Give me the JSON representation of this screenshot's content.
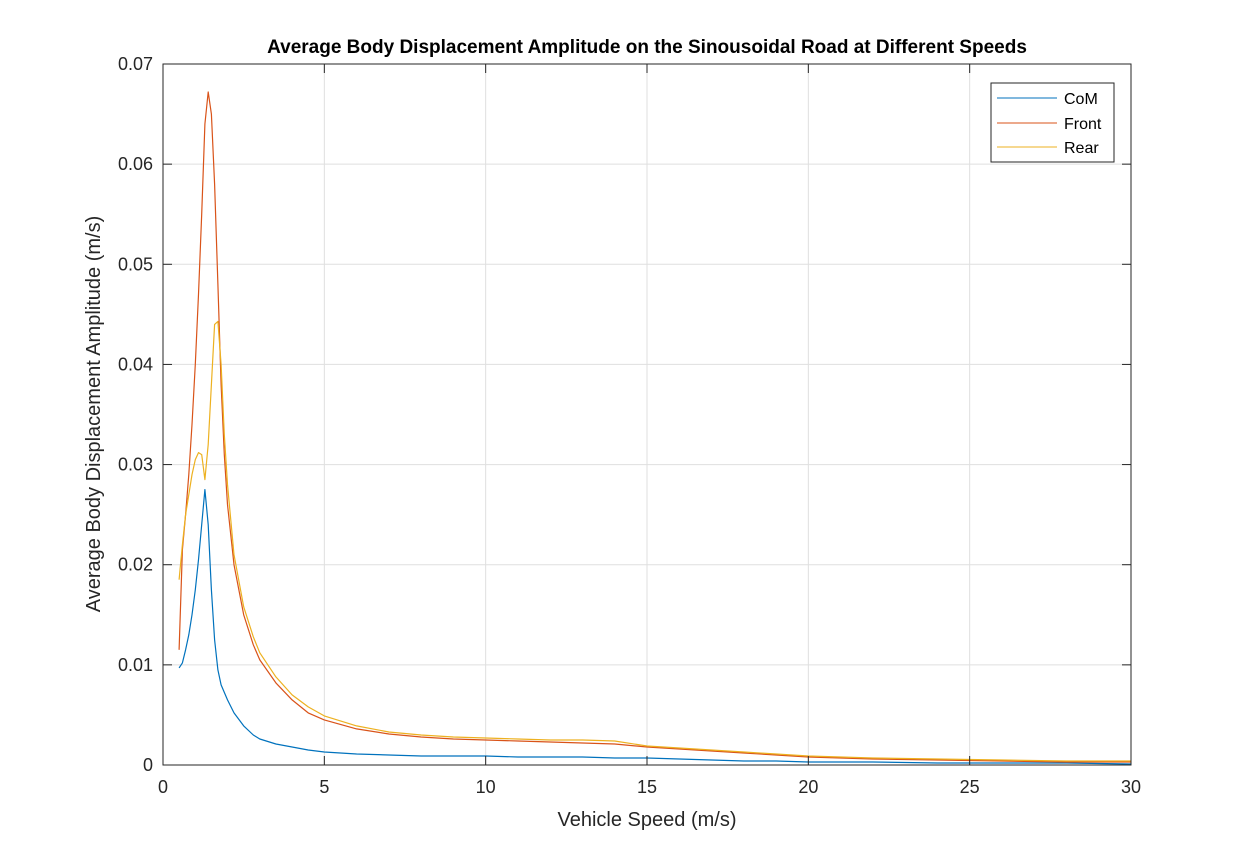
{
  "chart_data": {
    "type": "line",
    "title": "Average Body Displacement Amplitude on the Sinousoidal Road at Different Speeds",
    "xlabel": "Vehicle Speed (m/s)",
    "ylabel": "Average Body Displacement Amplitude (m/s)",
    "xlim": [
      0,
      30
    ],
    "ylim": [
      0,
      0.07
    ],
    "xticks": [
      0,
      5,
      10,
      15,
      20,
      25,
      30
    ],
    "xtick_labels": [
      "0",
      "5",
      "10",
      "15",
      "20",
      "25",
      "30"
    ],
    "yticks": [
      0,
      0.01,
      0.02,
      0.03,
      0.04,
      0.05,
      0.06,
      0.07
    ],
    "ytick_labels": [
      "0",
      "0.01",
      "0.02",
      "0.03",
      "0.04",
      "0.05",
      "0.06",
      "0.07"
    ],
    "grid": true,
    "legend_position": "top-right",
    "series": [
      {
        "name": "CoM",
        "color": "#0072BD",
        "x": [
          0.5,
          0.6,
          0.7,
          0.8,
          0.9,
          1.0,
          1.1,
          1.2,
          1.3,
          1.4,
          1.5,
          1.6,
          1.7,
          1.8,
          2.0,
          2.2,
          2.5,
          2.8,
          3.0,
          3.5,
          4.0,
          4.5,
          5.0,
          6.0,
          7.0,
          8.0,
          9.0,
          10.0,
          11.0,
          12.0,
          13.0,
          14.0,
          15.0,
          16.0,
          17.0,
          18.0,
          19.0,
          20.0,
          22.0,
          24.0,
          26.0,
          28.0,
          30.0
        ],
        "y": [
          0.0097,
          0.0102,
          0.0115,
          0.013,
          0.015,
          0.0175,
          0.0205,
          0.024,
          0.0275,
          0.024,
          0.0175,
          0.0125,
          0.0095,
          0.008,
          0.0065,
          0.0052,
          0.0039,
          0.003,
          0.0026,
          0.0021,
          0.0018,
          0.0015,
          0.0013,
          0.0011,
          0.001,
          0.0009,
          0.0009,
          0.0009,
          0.0008,
          0.0008,
          0.0008,
          0.0007,
          0.0007,
          0.0006,
          0.0005,
          0.0004,
          0.0004,
          0.0003,
          0.0003,
          0.0002,
          0.0002,
          0.0002,
          0.0001
        ]
      },
      {
        "name": "Front",
        "color": "#D95319",
        "x": [
          0.5,
          0.6,
          0.7,
          0.8,
          0.9,
          1.0,
          1.1,
          1.2,
          1.3,
          1.4,
          1.5,
          1.6,
          1.7,
          1.8,
          1.9,
          2.0,
          2.2,
          2.5,
          2.8,
          3.0,
          3.5,
          4.0,
          4.5,
          5.0,
          6.0,
          7.0,
          8.0,
          9.0,
          10.0,
          11.0,
          12.0,
          13.0,
          14.0,
          15.0,
          16.0,
          17.0,
          18.0,
          19.0,
          20.0,
          22.0,
          24.0,
          26.0,
          28.0,
          30.0
        ],
        "y": [
          0.0115,
          0.0215,
          0.025,
          0.029,
          0.034,
          0.04,
          0.047,
          0.055,
          0.064,
          0.0672,
          0.065,
          0.058,
          0.048,
          0.038,
          0.031,
          0.026,
          0.02,
          0.015,
          0.012,
          0.0105,
          0.0082,
          0.0065,
          0.0052,
          0.0045,
          0.0036,
          0.0031,
          0.0028,
          0.0026,
          0.0025,
          0.0024,
          0.0023,
          0.0022,
          0.0021,
          0.0018,
          0.0016,
          0.0014,
          0.0012,
          0.001,
          0.0008,
          0.0006,
          0.0005,
          0.0004,
          0.0003,
          0.0003
        ]
      },
      {
        "name": "Rear",
        "color": "#EDB120",
        "x": [
          0.5,
          0.6,
          0.7,
          0.8,
          0.9,
          1.0,
          1.1,
          1.2,
          1.3,
          1.4,
          1.5,
          1.6,
          1.7,
          1.8,
          1.9,
          2.0,
          2.2,
          2.5,
          2.8,
          3.0,
          3.5,
          4.0,
          4.5,
          5.0,
          6.0,
          7.0,
          8.0,
          9.0,
          10.0,
          11.0,
          12.0,
          13.0,
          14.0,
          15.0,
          16.0,
          17.0,
          18.0,
          19.0,
          20.0,
          22.0,
          24.0,
          26.0,
          28.0,
          30.0
        ],
        "y": [
          0.0185,
          0.022,
          0.025,
          0.027,
          0.029,
          0.0305,
          0.0312,
          0.031,
          0.0285,
          0.032,
          0.038,
          0.044,
          0.0443,
          0.04,
          0.033,
          0.028,
          0.021,
          0.0158,
          0.0128,
          0.0112,
          0.0088,
          0.007,
          0.0058,
          0.0049,
          0.0039,
          0.0033,
          0.003,
          0.0028,
          0.0027,
          0.0026,
          0.0025,
          0.0025,
          0.0024,
          0.0019,
          0.0017,
          0.0015,
          0.0013,
          0.0011,
          0.0009,
          0.0007,
          0.0006,
          0.0005,
          0.0004,
          0.0004
        ]
      }
    ]
  }
}
